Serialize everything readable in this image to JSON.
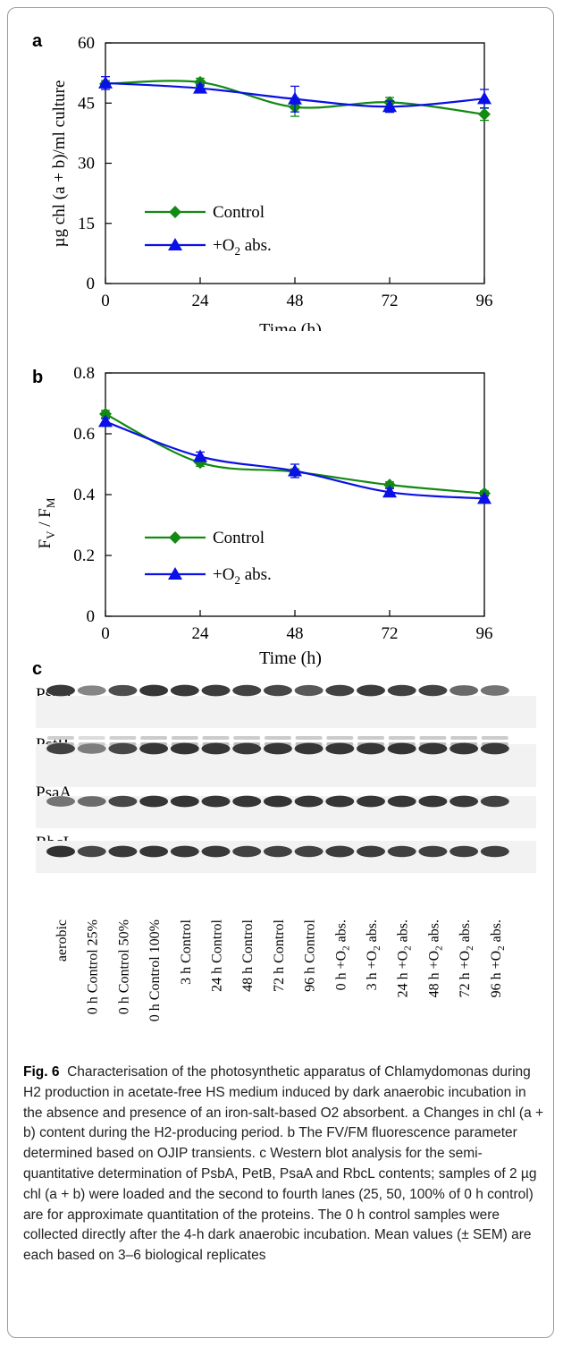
{
  "chart_data": [
    {
      "panel": "a",
      "type": "line",
      "xlabel": "Time (h)",
      "ylabel": "µg chl (a + b)/ml culture",
      "x": [
        0,
        24,
        48,
        72,
        96
      ],
      "xticks": [
        "0",
        "24",
        "48",
        "72",
        "96"
      ],
      "yticks": [
        "0",
        "15",
        "30",
        "45",
        "60"
      ],
      "xlim": [
        0,
        96
      ],
      "ylim": [
        0,
        60
      ],
      "legend_position": "bottom-left",
      "series": [
        {
          "name": "Control",
          "marker": "diamond",
          "color": "#138a13",
          "values": [
            49.8,
            50.2,
            44.0,
            45.2,
            42.2
          ],
          "err": [
            0.8,
            1.0,
            2.3,
            1.2,
            1.5
          ]
        },
        {
          "name": "+O2 abs.",
          "marker": "triangle",
          "color": "#0a10e6",
          "values": [
            50.0,
            48.7,
            46.0,
            44.1,
            46.1
          ],
          "err": [
            1.6,
            0.8,
            3.2,
            1.4,
            2.3
          ]
        }
      ]
    },
    {
      "panel": "b",
      "type": "line",
      "xlabel": "Time (h)",
      "ylabel": "FV / FM",
      "x": [
        0,
        24,
        48,
        72,
        96
      ],
      "xticks": [
        "0",
        "24",
        "48",
        "72",
        "96"
      ],
      "yticks": [
        "0",
        "0.2",
        "0.4",
        "0.6",
        "0.8"
      ],
      "xlim": [
        0,
        96
      ],
      "ylim": [
        0,
        0.8
      ],
      "legend_position": "bottom-left",
      "series": [
        {
          "name": "Control",
          "marker": "diamond",
          "color": "#138a13",
          "values": [
            0.665,
            0.505,
            0.475,
            0.432,
            0.404
          ],
          "err": [
            0.012,
            0.012,
            0.01,
            0.01,
            0.008
          ]
        },
        {
          "name": "+O2 abs.",
          "marker": "triangle",
          "color": "#0a10e6",
          "values": [
            0.64,
            0.525,
            0.478,
            0.408,
            0.387
          ],
          "err": [
            0.01,
            0.015,
            0.022,
            0.012,
            0.008
          ]
        }
      ]
    }
  ],
  "legend": {
    "control": "Control",
    "o2_prefix": "+O",
    "o2_sub": "2",
    "o2_suffix": " abs."
  },
  "axis_b_ylabel": {
    "f1": "F",
    "s1": "V",
    "slash": " / F",
    "s2": "M"
  },
  "panel_c": {
    "letter": "c",
    "blots": [
      "PsbA",
      "PetB",
      "PsaA",
      "RbcL"
    ],
    "lanes": [
      {
        "main": "aerobic"
      },
      {
        "main": "0 h Control 25%"
      },
      {
        "main": "0 h Control 50%"
      },
      {
        "main": "0 h Control 100%"
      },
      {
        "main": "3 h Control"
      },
      {
        "main": "24 h Control"
      },
      {
        "main": "48 h Control"
      },
      {
        "main": "72 h Control"
      },
      {
        "main": "96 h Control"
      },
      {
        "main": "0 h +O",
        "sub": "2",
        "tail": " abs."
      },
      {
        "main": "3 h +O",
        "sub": "2",
        "tail": " abs."
      },
      {
        "main": "24 h +O",
        "sub": "2",
        "tail": " abs."
      },
      {
        "main": "48 h +O",
        "sub": "2",
        "tail": " abs."
      },
      {
        "main": "72 h +O",
        "sub": "2",
        "tail": " abs."
      },
      {
        "main": "96 h +O",
        "sub": "2",
        "tail": " abs."
      }
    ],
    "band_intensity": {
      "PsbA": [
        0.9,
        0.45,
        0.78,
        0.92,
        0.9,
        0.88,
        0.85,
        0.82,
        0.72,
        0.85,
        0.88,
        0.86,
        0.84,
        0.62,
        0.55
      ],
      "PetB": [
        0.85,
        0.5,
        0.82,
        0.92,
        0.93,
        0.92,
        0.9,
        0.92,
        0.92,
        0.92,
        0.92,
        0.93,
        0.92,
        0.92,
        0.9
      ],
      "PsaA": [
        0.55,
        0.6,
        0.82,
        0.92,
        0.93,
        0.92,
        0.92,
        0.93,
        0.92,
        0.92,
        0.92,
        0.92,
        0.92,
        0.9,
        0.85
      ],
      "RbcL": [
        0.95,
        0.82,
        0.9,
        0.92,
        0.9,
        0.9,
        0.85,
        0.85,
        0.85,
        0.88,
        0.88,
        0.86,
        0.86,
        0.86,
        0.86
      ]
    }
  },
  "caption": {
    "fig_label": "Fig. 6",
    "text": "Characterisation of the photosynthetic apparatus of Chlamydomonas during H2 production in acetate-free HS medium induced by dark anaerobic incubation in the absence and presence of an iron-salt-based O2 absorbent. a Changes in chl (a + b) content during the H2-producing period. b The FV/FM fluorescence parameter determined based on OJIP transients. c Western blot analysis for the semi-quantitative determination of PsbA, PetB, PsaA and RbcL contents; samples of 2 µg chl (a + b) were loaded and the second to fourth lanes (25, 50, 100% of 0 h control) are for approximate quantitation of the proteins. The 0 h control samples were collected directly after the 4-h dark anaerobic incubation. Mean values (± SEM) are each based on 3–6 biological replicates"
  }
}
